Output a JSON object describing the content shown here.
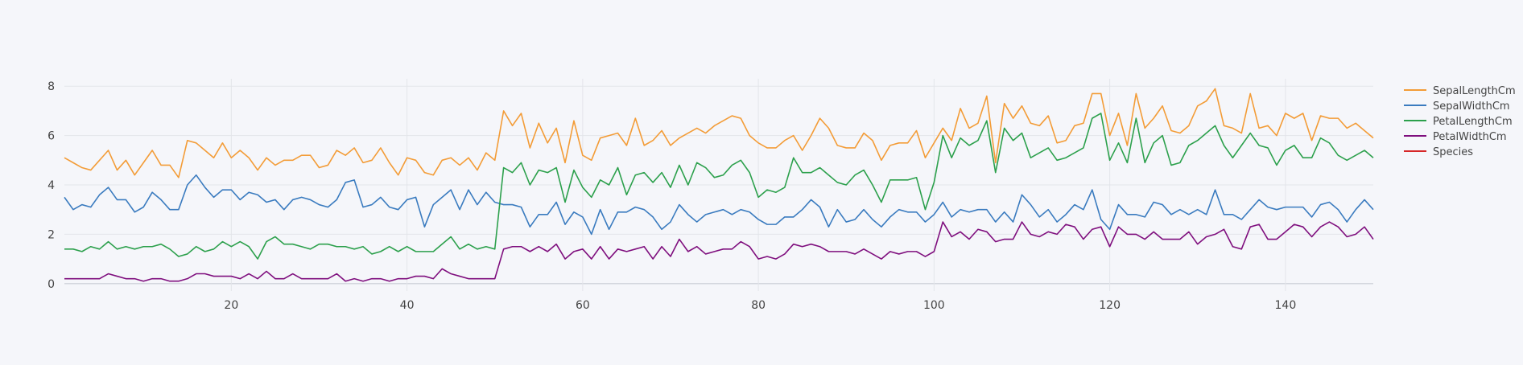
{
  "chart_data": {
    "type": "line",
    "title": "",
    "xlabel": "",
    "ylabel": "",
    "xlim": [
      1,
      150
    ],
    "ylim": [
      -0.3,
      8.3
    ],
    "x_ticks": [
      20,
      40,
      60,
      80,
      100,
      120,
      140
    ],
    "y_ticks": [
      0,
      2,
      4,
      6,
      8
    ],
    "grid": true,
    "legend_position": "right",
    "series": [
      {
        "name": "SepalLengthCm",
        "color": "#f39c37",
        "values": [
          5.1,
          4.9,
          4.7,
          4.6,
          5.0,
          5.4,
          4.6,
          5.0,
          4.4,
          4.9,
          5.4,
          4.8,
          4.8,
          4.3,
          5.8,
          5.7,
          5.4,
          5.1,
          5.7,
          5.1,
          5.4,
          5.1,
          4.6,
          5.1,
          4.8,
          5.0,
          5.0,
          5.2,
          5.2,
          4.7,
          4.8,
          5.4,
          5.2,
          5.5,
          4.9,
          5.0,
          5.5,
          4.9,
          4.4,
          5.1,
          5.0,
          4.5,
          4.4,
          5.0,
          5.1,
          4.8,
          5.1,
          4.6,
          5.3,
          5.0,
          7.0,
          6.4,
          6.9,
          5.5,
          6.5,
          5.7,
          6.3,
          4.9,
          6.6,
          5.2,
          5.0,
          5.9,
          6.0,
          6.1,
          5.6,
          6.7,
          5.6,
          5.8,
          6.2,
          5.6,
          5.9,
          6.1,
          6.3,
          6.1,
          6.4,
          6.6,
          6.8,
          6.7,
          6.0,
          5.7,
          5.5,
          5.5,
          5.8,
          6.0,
          5.4,
          6.0,
          6.7,
          6.3,
          5.6,
          5.5,
          5.5,
          6.1,
          5.8,
          5.0,
          5.6,
          5.7,
          5.7,
          6.2,
          5.1,
          5.7,
          6.3,
          5.8,
          7.1,
          6.3,
          6.5,
          7.6,
          4.9,
          7.3,
          6.7,
          7.2,
          6.5,
          6.4,
          6.8,
          5.7,
          5.8,
          6.4,
          6.5,
          7.7,
          7.7,
          6.0,
          6.9,
          5.6,
          7.7,
          6.3,
          6.7,
          7.2,
          6.2,
          6.1,
          6.4,
          7.2,
          7.4,
          7.9,
          6.4,
          6.3,
          6.1,
          7.7,
          6.3,
          6.4,
          6.0,
          6.9,
          6.7,
          6.9,
          5.8,
          6.8,
          6.7,
          6.7,
          6.3,
          6.5,
          6.2,
          5.9
        ]
      },
      {
        "name": "SepalWidthCm",
        "color": "#3a7bbf",
        "values": [
          3.5,
          3.0,
          3.2,
          3.1,
          3.6,
          3.9,
          3.4,
          3.4,
          2.9,
          3.1,
          3.7,
          3.4,
          3.0,
          3.0,
          4.0,
          4.4,
          3.9,
          3.5,
          3.8,
          3.8,
          3.4,
          3.7,
          3.6,
          3.3,
          3.4,
          3.0,
          3.4,
          3.5,
          3.4,
          3.2,
          3.1,
          3.4,
          4.1,
          4.2,
          3.1,
          3.2,
          3.5,
          3.1,
          3.0,
          3.4,
          3.5,
          2.3,
          3.2,
          3.5,
          3.8,
          3.0,
          3.8,
          3.2,
          3.7,
          3.3,
          3.2,
          3.2,
          3.1,
          2.3,
          2.8,
          2.8,
          3.3,
          2.4,
          2.9,
          2.7,
          2.0,
          3.0,
          2.2,
          2.9,
          2.9,
          3.1,
          3.0,
          2.7,
          2.2,
          2.5,
          3.2,
          2.8,
          2.5,
          2.8,
          2.9,
          3.0,
          2.8,
          3.0,
          2.9,
          2.6,
          2.4,
          2.4,
          2.7,
          2.7,
          3.0,
          3.4,
          3.1,
          2.3,
          3.0,
          2.5,
          2.6,
          3.0,
          2.6,
          2.3,
          2.7,
          3.0,
          2.9,
          2.9,
          2.5,
          2.8,
          3.3,
          2.7,
          3.0,
          2.9,
          3.0,
          3.0,
          2.5,
          2.9,
          2.5,
          3.6,
          3.2,
          2.7,
          3.0,
          2.5,
          2.8,
          3.2,
          3.0,
          3.8,
          2.6,
          2.2,
          3.2,
          2.8,
          2.8,
          2.7,
          3.3,
          3.2,
          2.8,
          3.0,
          2.8,
          3.0,
          2.8,
          3.8,
          2.8,
          2.8,
          2.6,
          3.0,
          3.4,
          3.1,
          3.0,
          3.1,
          3.1,
          3.1,
          2.7,
          3.2,
          3.3,
          3.0,
          2.5,
          3.0,
          3.4,
          3.0
        ]
      },
      {
        "name": "PetalLengthCm",
        "color": "#2ca04c",
        "values": [
          1.4,
          1.4,
          1.3,
          1.5,
          1.4,
          1.7,
          1.4,
          1.5,
          1.4,
          1.5,
          1.5,
          1.6,
          1.4,
          1.1,
          1.2,
          1.5,
          1.3,
          1.4,
          1.7,
          1.5,
          1.7,
          1.5,
          1.0,
          1.7,
          1.9,
          1.6,
          1.6,
          1.5,
          1.4,
          1.6,
          1.6,
          1.5,
          1.5,
          1.4,
          1.5,
          1.2,
          1.3,
          1.5,
          1.3,
          1.5,
          1.3,
          1.3,
          1.3,
          1.6,
          1.9,
          1.4,
          1.6,
          1.4,
          1.5,
          1.4,
          4.7,
          4.5,
          4.9,
          4.0,
          4.6,
          4.5,
          4.7,
          3.3,
          4.6,
          3.9,
          3.5,
          4.2,
          4.0,
          4.7,
          3.6,
          4.4,
          4.5,
          4.1,
          4.5,
          3.9,
          4.8,
          4.0,
          4.9,
          4.7,
          4.3,
          4.4,
          4.8,
          5.0,
          4.5,
          3.5,
          3.8,
          3.7,
          3.9,
          5.1,
          4.5,
          4.5,
          4.7,
          4.4,
          4.1,
          4.0,
          4.4,
          4.6,
          4.0,
          3.3,
          4.2,
          4.2,
          4.2,
          4.3,
          3.0,
          4.1,
          6.0,
          5.1,
          5.9,
          5.6,
          5.8,
          6.6,
          4.5,
          6.3,
          5.8,
          6.1,
          5.1,
          5.3,
          5.5,
          5.0,
          5.1,
          5.3,
          5.5,
          6.7,
          6.9,
          5.0,
          5.7,
          4.9,
          6.7,
          4.9,
          5.7,
          6.0,
          4.8,
          4.9,
          5.6,
          5.8,
          6.1,
          6.4,
          5.6,
          5.1,
          5.6,
          6.1,
          5.6,
          5.5,
          4.8,
          5.4,
          5.6,
          5.1,
          5.1,
          5.9,
          5.7,
          5.2,
          5.0,
          5.2,
          5.4,
          5.1
        ]
      },
      {
        "name": "PetalWidthCm",
        "color": "#7f0f7e",
        "values": [
          0.2,
          0.2,
          0.2,
          0.2,
          0.2,
          0.4,
          0.3,
          0.2,
          0.2,
          0.1,
          0.2,
          0.2,
          0.1,
          0.1,
          0.2,
          0.4,
          0.4,
          0.3,
          0.3,
          0.3,
          0.2,
          0.4,
          0.2,
          0.5,
          0.2,
          0.2,
          0.4,
          0.2,
          0.2,
          0.2,
          0.2,
          0.4,
          0.1,
          0.2,
          0.1,
          0.2,
          0.2,
          0.1,
          0.2,
          0.2,
          0.3,
          0.3,
          0.2,
          0.6,
          0.4,
          0.3,
          0.2,
          0.2,
          0.2,
          0.2,
          1.4,
          1.5,
          1.5,
          1.3,
          1.5,
          1.3,
          1.6,
          1.0,
          1.3,
          1.4,
          1.0,
          1.5,
          1.0,
          1.4,
          1.3,
          1.4,
          1.5,
          1.0,
          1.5,
          1.1,
          1.8,
          1.3,
          1.5,
          1.2,
          1.3,
          1.4,
          1.4,
          1.7,
          1.5,
          1.0,
          1.1,
          1.0,
          1.2,
          1.6,
          1.5,
          1.6,
          1.5,
          1.3,
          1.3,
          1.3,
          1.2,
          1.4,
          1.2,
          1.0,
          1.3,
          1.2,
          1.3,
          1.3,
          1.1,
          1.3,
          2.5,
          1.9,
          2.1,
          1.8,
          2.2,
          2.1,
          1.7,
          1.8,
          1.8,
          2.5,
          2.0,
          1.9,
          2.1,
          2.0,
          2.4,
          2.3,
          1.8,
          2.2,
          2.3,
          1.5,
          2.3,
          2.0,
          2.0,
          1.8,
          2.1,
          1.8,
          1.8,
          1.8,
          2.1,
          1.6,
          1.9,
          2.0,
          2.2,
          1.5,
          1.4,
          2.3,
          2.4,
          1.8,
          1.8,
          2.1,
          2.4,
          2.3,
          1.9,
          2.3,
          2.5,
          2.3,
          1.9,
          2.0,
          2.3,
          1.8
        ]
      },
      {
        "name": "Species",
        "color": "#d62728",
        "values": []
      }
    ]
  }
}
